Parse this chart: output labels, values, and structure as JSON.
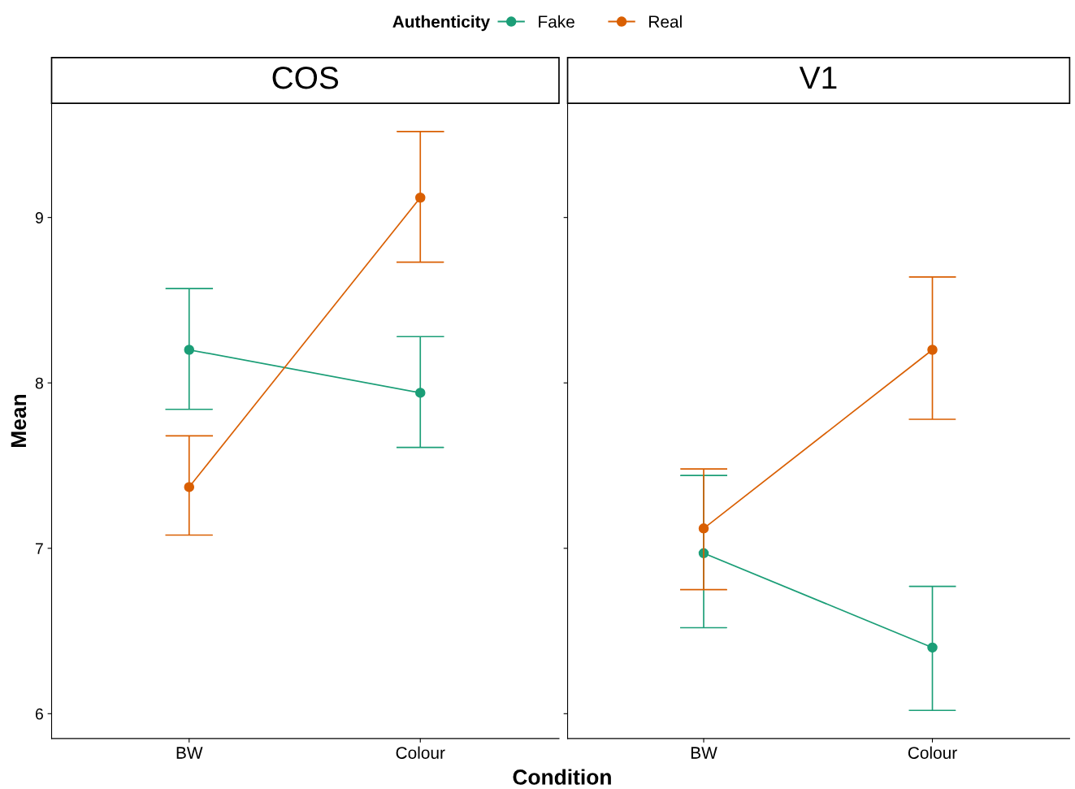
{
  "chart_data": [
    {
      "type": "line",
      "title": "COS",
      "categories": [
        "BW",
        "Colour"
      ],
      "ylabel": "Mean",
      "xlabel": "Condition",
      "legend_title": "Authenticity",
      "legend": "top",
      "marker": "circle",
      "line_style": "solid",
      "grid": false,
      "ylim": [
        5.85,
        9.69
      ],
      "yticks": [
        6,
        7,
        8,
        9
      ],
      "series": [
        {
          "name": "Fake",
          "color": "#1b9e77",
          "values": [
            8.2,
            7.94
          ],
          "errors": [
            [
              7.84,
              8.57
            ],
            [
              7.61,
              8.28
            ]
          ]
        },
        {
          "name": "Real",
          "color": "#d95f02",
          "values": [
            7.37,
            9.12
          ],
          "errors": [
            [
              7.08,
              7.68
            ],
            [
              8.73,
              9.52
            ]
          ]
        }
      ]
    },
    {
      "type": "line",
      "title": "V1",
      "categories": [
        "BW",
        "Colour"
      ],
      "marker": "circle",
      "line_style": "solid",
      "grid": false,
      "ylim": [
        5.85,
        9.69
      ],
      "yticks": [
        6,
        7,
        8,
        9
      ],
      "tick_labels": "x",
      "series": [
        {
          "color": "#1b9e77",
          "values": [
            6.97,
            6.4
          ],
          "errors": [
            [
              6.52,
              7.44
            ],
            [
              6.02,
              6.77
            ]
          ]
        },
        {
          "color": "#d95f02",
          "values": [
            7.12,
            8.2
          ],
          "errors": [
            [
              6.75,
              7.48
            ],
            [
              7.78,
              8.64
            ]
          ]
        }
      ]
    }
  ]
}
